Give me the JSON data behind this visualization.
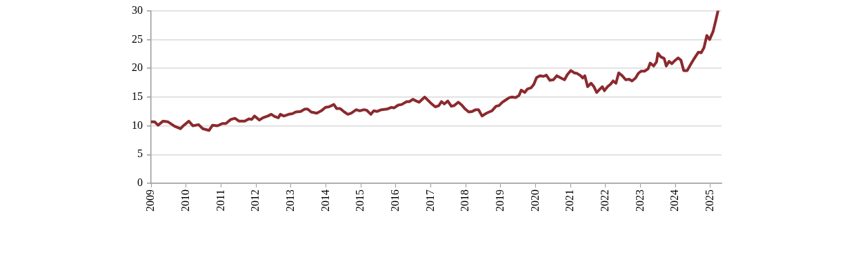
{
  "chart_data": {
    "type": "line",
    "xlim": [
      2009,
      2025.32
    ],
    "xticks": [
      2009,
      2010,
      2011,
      2012,
      2013,
      2014,
      2015,
      2016,
      2017,
      2018,
      2019,
      2020,
      2021,
      2022,
      2023,
      2024,
      2025
    ],
    "ylim": [
      0,
      30
    ],
    "yticks": [
      0,
      5,
      10,
      15,
      20,
      25,
      30
    ],
    "grid": "y",
    "legend": false,
    "marker": "none",
    "series": [
      {
        "color": "#8b2a2e",
        "x": [
          2009.0,
          2009.1,
          2009.2,
          2009.34,
          2009.48,
          2009.68,
          2009.84,
          2009.94,
          2010.08,
          2010.2,
          2010.36,
          2010.48,
          2010.66,
          2010.76,
          2010.9,
          2011.04,
          2011.14,
          2011.28,
          2011.4,
          2011.52,
          2011.68,
          2011.8,
          2011.88,
          2011.96,
          2012.1,
          2012.2,
          2012.34,
          2012.44,
          2012.54,
          2012.64,
          2012.7,
          2012.8,
          2012.94,
          2013.04,
          2013.14,
          2013.28,
          2013.4,
          2013.48,
          2013.58,
          2013.74,
          2013.87,
          2013.99,
          2014.09,
          2014.23,
          2014.31,
          2014.41,
          2014.53,
          2014.63,
          2014.73,
          2014.87,
          2014.97,
          2015.09,
          2015.17,
          2015.29,
          2015.37,
          2015.47,
          2015.59,
          2015.75,
          2015.87,
          2015.95,
          2016.07,
          2016.17,
          2016.31,
          2016.39,
          2016.49,
          2016.59,
          2016.67,
          2016.83,
          2017.03,
          2017.13,
          2017.23,
          2017.31,
          2017.39,
          2017.49,
          2017.59,
          2017.67,
          2017.79,
          2017.89,
          2017.99,
          2018.09,
          2018.19,
          2018.29,
          2018.37,
          2018.47,
          2018.57,
          2018.67,
          2018.75,
          2018.87,
          2018.95,
          2019.05,
          2019.15,
          2019.25,
          2019.33,
          2019.43,
          2019.53,
          2019.59,
          2019.69,
          2019.77,
          2019.87,
          2019.95,
          2020.03,
          2020.13,
          2020.23,
          2020.31,
          2020.41,
          2020.51,
          2020.61,
          2020.73,
          2020.83,
          2020.91,
          2021.01,
          2021.11,
          2021.19,
          2021.29,
          2021.35,
          2021.41,
          2021.49,
          2021.59,
          2021.67,
          2021.75,
          2021.83,
          2021.91,
          2021.97,
          2022.06,
          2022.14,
          2022.22,
          2022.3,
          2022.38,
          2022.48,
          2022.58,
          2022.68,
          2022.76,
          2022.86,
          2022.94,
          2023.02,
          2023.12,
          2023.22,
          2023.28,
          2023.38,
          2023.46,
          2023.5,
          2023.58,
          2023.68,
          2023.74,
          2023.82,
          2023.9,
          2023.98,
          2024.08,
          2024.16,
          2024.24,
          2024.34,
          2024.44,
          2024.54,
          2024.66,
          2024.74,
          2024.82,
          2024.9,
          2024.98,
          2025.08,
          2025.16,
          2025.22
        ],
        "values": [
          10.7,
          10.7,
          10.1,
          10.8,
          10.7,
          9.9,
          9.5,
          10.1,
          10.8,
          10.0,
          10.2,
          9.5,
          9.2,
          10.1,
          10.0,
          10.4,
          10.4,
          11.1,
          11.3,
          10.8,
          10.8,
          11.2,
          11.1,
          11.7,
          11.0,
          11.4,
          11.7,
          12.0,
          11.6,
          11.4,
          12.0,
          11.7,
          12.0,
          12.1,
          12.4,
          12.5,
          12.9,
          12.9,
          12.4,
          12.2,
          12.6,
          13.2,
          13.3,
          13.7,
          13.0,
          13.0,
          12.4,
          12.0,
          12.2,
          12.8,
          12.6,
          12.8,
          12.7,
          12.0,
          12.6,
          12.5,
          12.8,
          12.9,
          13.2,
          13.1,
          13.6,
          13.7,
          14.2,
          14.2,
          14.6,
          14.3,
          14.1,
          15.0,
          13.8,
          13.3,
          13.5,
          14.2,
          13.8,
          14.3,
          13.4,
          13.5,
          14.1,
          13.6,
          12.9,
          12.4,
          12.5,
          12.8,
          12.8,
          11.7,
          12.1,
          12.4,
          12.6,
          13.4,
          13.5,
          14.1,
          14.5,
          14.9,
          15.0,
          14.9,
          15.3,
          16.2,
          15.8,
          16.4,
          16.6,
          17.2,
          18.4,
          18.7,
          18.6,
          18.8,
          17.9,
          18.0,
          18.7,
          18.3,
          18.0,
          18.9,
          19.6,
          19.2,
          19.1,
          18.7,
          18.3,
          18.7,
          16.8,
          17.4,
          16.8,
          15.8,
          16.3,
          16.8,
          16.1,
          16.8,
          17.2,
          17.8,
          17.4,
          19.2,
          18.7,
          18.0,
          18.1,
          17.8,
          18.3,
          19.1,
          19.5,
          19.5,
          19.9,
          20.9,
          20.4,
          21.1,
          22.6,
          22.0,
          21.7,
          20.4,
          21.2,
          20.8,
          21.3,
          21.8,
          21.4,
          19.6,
          19.6,
          20.7,
          21.7,
          22.8,
          22.7,
          23.6,
          25.7,
          25.0,
          26.4,
          28.4,
          30.0
        ]
      }
    ]
  }
}
